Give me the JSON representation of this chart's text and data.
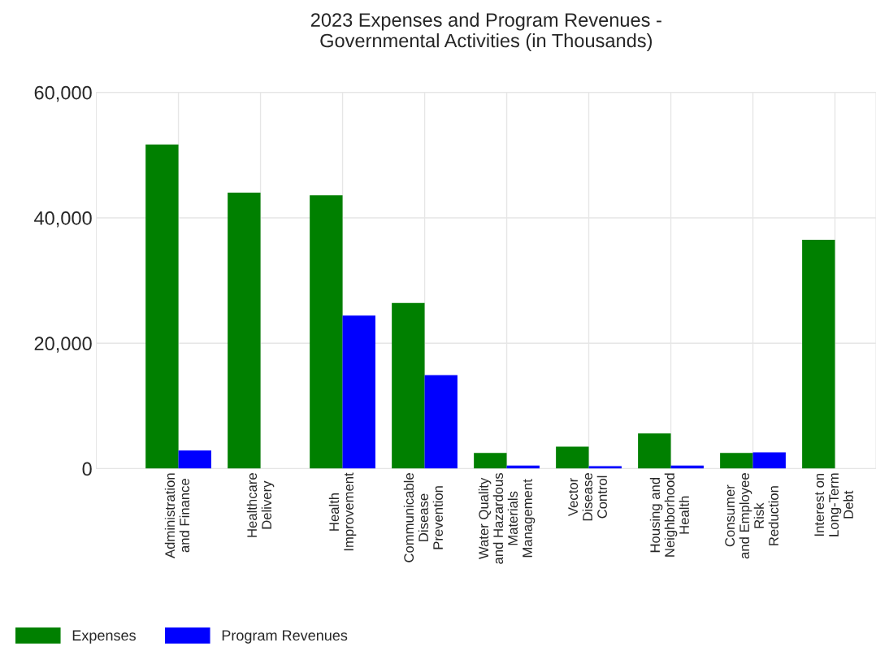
{
  "chart_data": {
    "type": "bar",
    "title": "2023 Expenses and Program Revenues -\nGovernmental Activities (in Thousands)",
    "categories": [
      "Administration\nand Finance",
      "Healthcare\nDelivery",
      "Health\nImprovement",
      "Communicable\nDisease\nPrevention",
      "Water Quality\nand Hazardous\nMaterials\nManagement",
      "Vector\nDisease\nControl",
      "Housing and\nNeighborhood\nHealth",
      "Consumer\nand Employee\nRisk\nReduction",
      "Interest on\nLong-Term\nDebt"
    ],
    "series": [
      {
        "name": "Expenses",
        "color": "#008000",
        "values": [
          51700,
          44000,
          43600,
          26400,
          2500,
          3500,
          5600,
          2500,
          36500
        ]
      },
      {
        "name": "Program Revenues",
        "color": "#0000ff",
        "values": [
          2900,
          0,
          24400,
          14900,
          500,
          400,
          500,
          2600,
          0
        ]
      }
    ],
    "ylim": [
      0,
      60000
    ],
    "yticks": [
      {
        "value": 0,
        "label": "0"
      },
      {
        "value": 20000,
        "label": "20,000"
      },
      {
        "value": 40000,
        "label": "40,000"
      },
      {
        "value": 60000,
        "label": "60,000"
      }
    ],
    "grid": true,
    "legend": "bottom left"
  }
}
